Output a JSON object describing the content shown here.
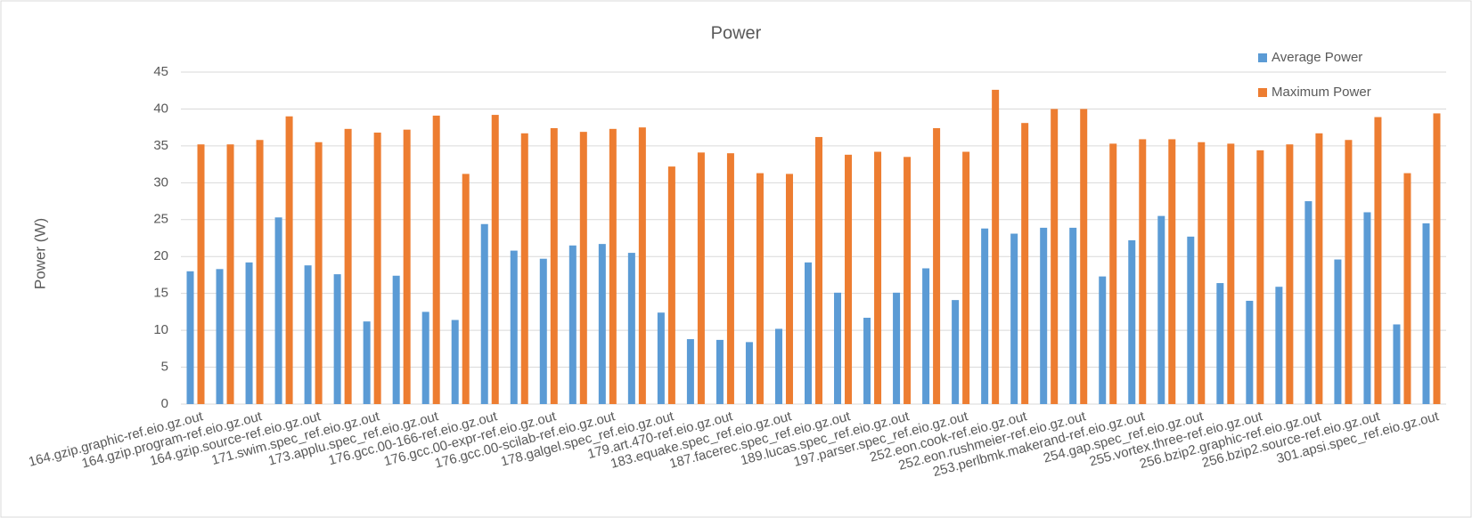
{
  "chart_data": {
    "type": "bar",
    "title": "Power",
    "y_label": "Power (W)",
    "categories": [
      "164.gzip.graphic-ref.eio.gz.out",
      null,
      "164.gzip.program-ref.eio.gz.out",
      null,
      "164.gzip.source-ref.eio.gz.out",
      null,
      "171.swim.spec_ref.eio.gz.out",
      null,
      "173.applu.spec_ref.eio.gz.out",
      null,
      "176.gcc.00-166-ref.eio.gz.out",
      null,
      "176.gcc.00-expr-ref.eio.gz.out",
      null,
      "176.gcc.00-scilab-ref.eio.gz.out",
      null,
      "178.galgel.spec_ref.eio.gz.out",
      null,
      "179.art.470-ref.eio.gz.out",
      null,
      "183.equake.spec_ref.eio.gz.out",
      null,
      "187.facerec.spec_ref.eio.gz.out",
      null,
      "189.lucas.spec_ref.eio.gz.out",
      null,
      "197.parser.spec_ref.eio.gz.out",
      null,
      "252.eon.cook-ref.eio.gz.out",
      null,
      "252.eon.rushmeier-ref.eio.gz.out",
      null,
      "253.perlbmk.makerand-ref.eio.gz.out",
      null,
      "254.gap.spec_ref.eio.gz.out",
      null,
      "255.vortex.three-ref.eio.gz.out",
      null,
      "256.bzip2.graphic-ref.eio.gz.out",
      null,
      "256.bzip2.source-ref.eio.gz.out",
      null,
      "301.apsi.spec_ref.eio.gz.out"
    ],
    "series": [
      {
        "name": "Average Power",
        "color": "#5b9bd5",
        "values": [
          18,
          18.3,
          19.2,
          25.3,
          18.8,
          17.6,
          11.2,
          17.4,
          12.5,
          11.4,
          24.4,
          20.8,
          19.7,
          21.5,
          21.7,
          20.5,
          12.4,
          8.8,
          8.7,
          8.4,
          10.2,
          19.2,
          15.1,
          11.7,
          15.1,
          18.4,
          14.1,
          23.8,
          23.1,
          23.9,
          23.9,
          17.3,
          22.2,
          25.5,
          22.7,
          16.4,
          14.0,
          15.9,
          27.5,
          19.6,
          26.0,
          10.8,
          24.5
        ]
      },
      {
        "name": "Maximum Power",
        "color": "#ed7d31",
        "values": [
          35.2,
          35.2,
          35.8,
          39.0,
          35.5,
          37.3,
          36.8,
          37.2,
          39.1,
          31.2,
          39.2,
          36.7,
          37.4,
          36.9,
          37.3,
          37.5,
          32.2,
          34.1,
          34.0,
          31.3,
          31.2,
          36.2,
          33.8,
          34.2,
          33.5,
          37.4,
          34.2,
          42.6,
          38.1,
          40.0,
          40.0,
          35.3,
          35.9,
          35.9,
          35.5,
          35.3,
          34.4,
          35.2,
          36.7,
          35.8,
          38.9,
          31.3,
          39.4
        ]
      }
    ],
    "ylim": [
      0,
      45
    ],
    "yticks": [
      0,
      5,
      10,
      15,
      20,
      25,
      30,
      35,
      40,
      45
    ],
    "grid": true,
    "legend": "top-right"
  }
}
